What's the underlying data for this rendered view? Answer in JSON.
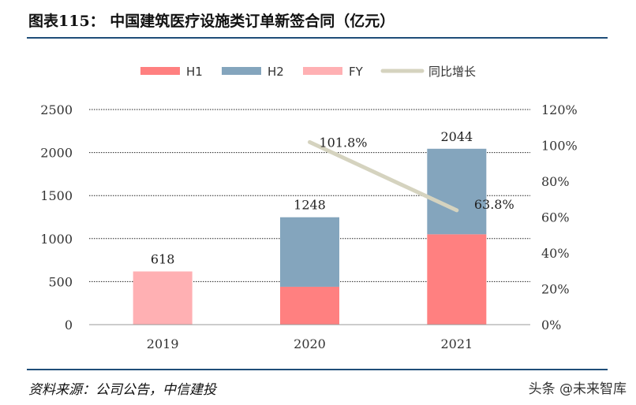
{
  "header": {
    "title": "图表115：  中国建筑医疗设施类订单新签合同（亿元）"
  },
  "footer": {
    "source": "资料来源：公司公告，中信建投",
    "watermark": "头条 @未来智库"
  },
  "chart_data": {
    "type": "bar",
    "categories": [
      "2019",
      "2020",
      "2021"
    ],
    "series": [
      {
        "name": "H1",
        "color": "#ff8080",
        "values": [
          null,
          440,
          1050
        ]
      },
      {
        "name": "H2",
        "color": "#84a5bd",
        "values": [
          null,
          808,
          994
        ]
      },
      {
        "name": "FY",
        "color": "#ffb0b3",
        "values": [
          618,
          null,
          null
        ]
      }
    ],
    "line_series": {
      "name": "同比增长",
      "color": "#d5d3bf",
      "values": [
        null,
        101.8,
        63.8
      ],
      "axis": "right"
    },
    "totals": [
      618,
      1248,
      2044
    ],
    "total_labels": [
      "618",
      "1248",
      "2044"
    ],
    "line_labels": [
      "",
      "101.8%",
      "63.8%"
    ],
    "y_left": {
      "ticks": [
        "0",
        "500",
        "1000",
        "1500",
        "2000",
        "2500"
      ],
      "lim": [
        0,
        2500
      ]
    },
    "y_right": {
      "ticks": [
        "0%",
        "20%",
        "40%",
        "60%",
        "80%",
        "100%",
        "120%"
      ],
      "lim": [
        0,
        120
      ]
    },
    "grid": true,
    "legend_position": "top-center"
  }
}
